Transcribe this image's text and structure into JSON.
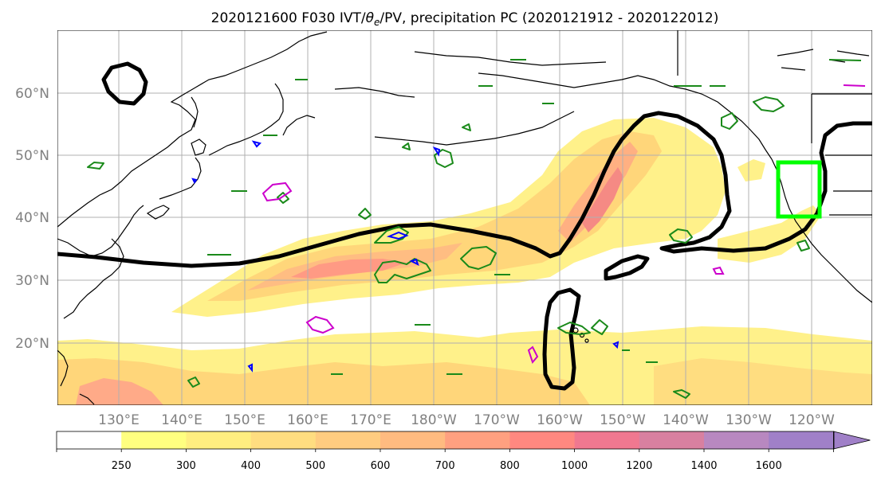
{
  "title": {
    "prefix": "2020121600 F030 IVT/",
    "theta": "θ",
    "theta_sub": "e",
    "suffix": "/PV, precipitation PC (2020121912 - 2020122012)"
  },
  "map": {
    "lat_labels": [
      "60°N",
      "50°N",
      "40°N",
      "30°N",
      "20°N"
    ],
    "lon_labels": [
      "130°E",
      "140°E",
      "150°E",
      "160°E",
      "170°E",
      "180°W",
      "170°W",
      "160°W",
      "150°W",
      "140°W",
      "130°W",
      "120°W"
    ],
    "colors": {
      "pv_contour": "#000000",
      "precip_contour": "#1a8a1a",
      "theta_contour_blue": "#0000ff",
      "theta_contour_magenta": "#cc00cc",
      "highlight_box": "#00ff00",
      "coast": "#000000",
      "grid": "#b0b0b0",
      "ocean": "#ffffff"
    },
    "icons": [
      "coastline-layer",
      "graticule-grid",
      "target-region-box"
    ]
  },
  "colorbar": {
    "ticks": [
      "250",
      "300",
      "400",
      "500",
      "600",
      "700",
      "800",
      "1000",
      "1200",
      "1400",
      "1600"
    ],
    "colors": [
      "#ffffff",
      "#ffff80",
      "#ffee80",
      "#ffdd80",
      "#ffcc80",
      "#ffbb80",
      "#ffa080",
      "#ff8880",
      "#f07890",
      "#d880a0",
      "#b888c0",
      "#a080c8"
    ]
  }
}
